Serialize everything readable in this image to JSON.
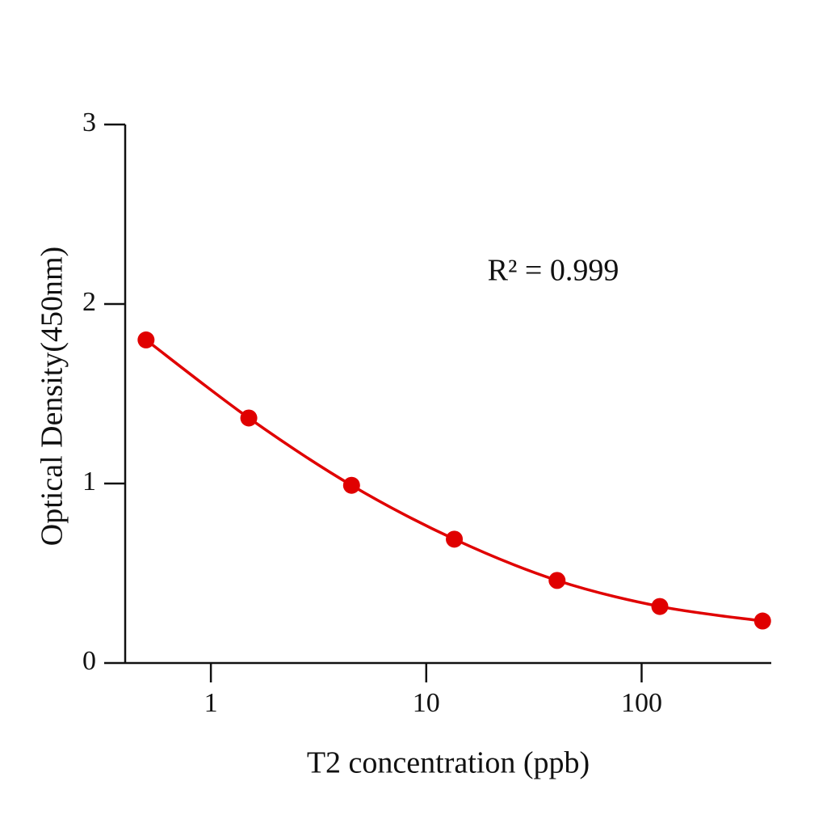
{
  "chart_data": {
    "type": "line",
    "xlabel": "T2 concentration (ppb)",
    "ylabel": "Optical Density(450nm)",
    "annotation": "R² = 0.999",
    "xscale": "log",
    "x": [
      0.5,
      1.5,
      4.5,
      13.5,
      40.5,
      121.5,
      364.5
    ],
    "series": [
      {
        "color": "#e00000",
        "values": [
          1.8,
          1.365,
          0.99,
          0.69,
          0.46,
          0.315,
          0.234
        ]
      }
    ],
    "xlim": [
      0.4,
      400
    ],
    "ylim": [
      0,
      3
    ],
    "xticks": [
      1,
      10,
      100
    ],
    "yticks": [
      0,
      1,
      2,
      3
    ],
    "markers": true
  }
}
